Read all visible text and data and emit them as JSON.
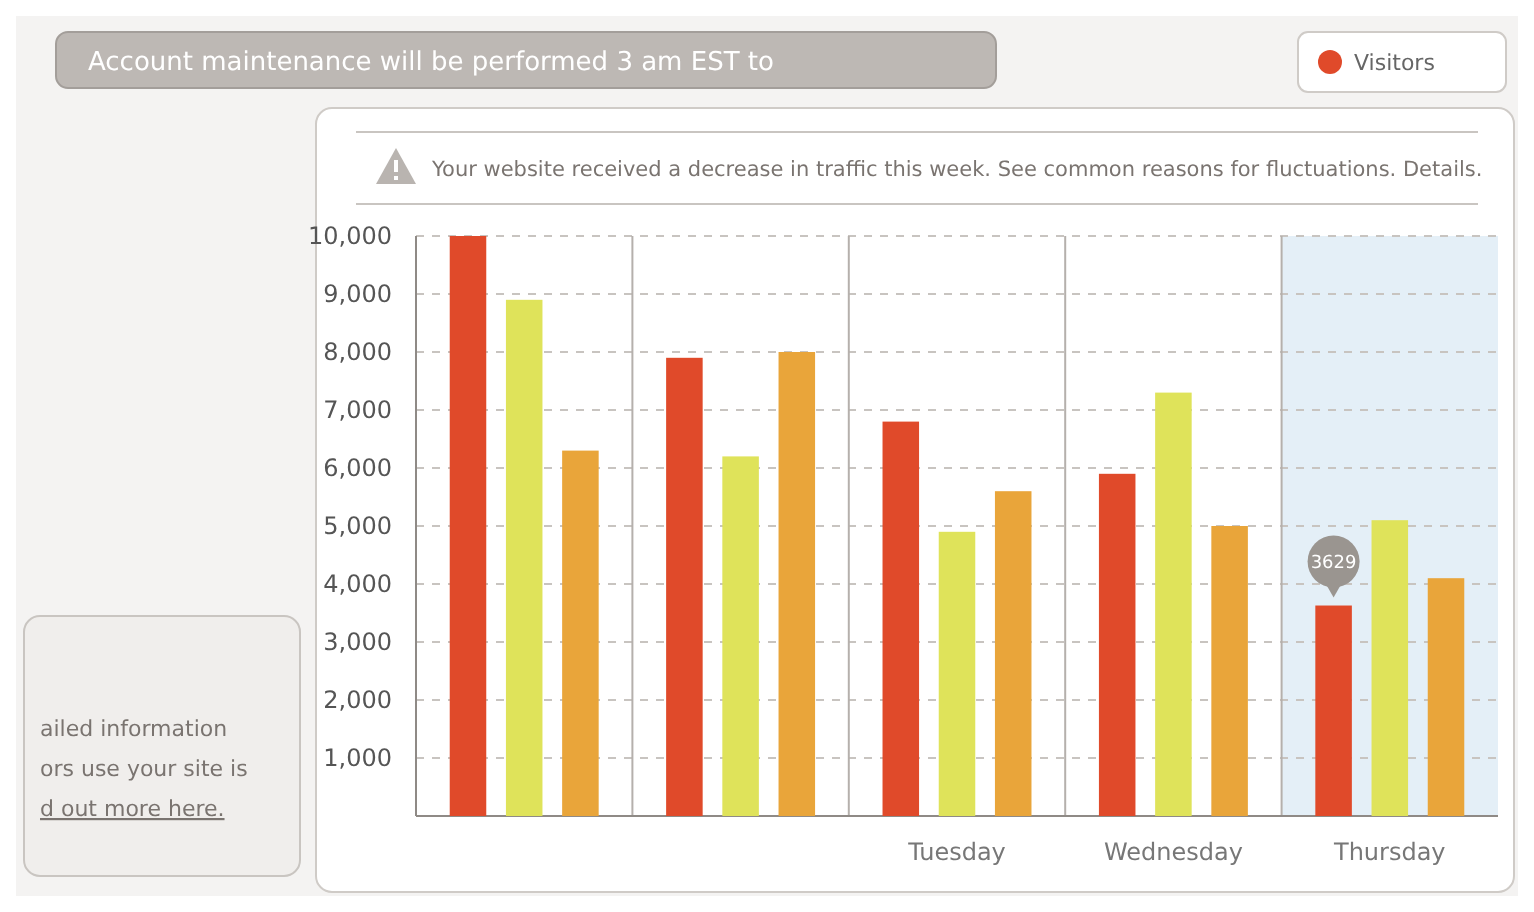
{
  "chart_data": {
    "type": "bar",
    "categories": [
      null,
      null,
      "Tuesday",
      "Wednesday",
      "Thursday"
    ],
    "series": [
      {
        "name": "Visitors",
        "color": "#e04a2a",
        "values": [
          10000,
          7900,
          6800,
          5900,
          3629
        ],
        "value_labels": [
          null,
          null,
          null,
          null,
          "3629"
        ]
      },
      {
        "color": "#dfe35a",
        "values": [
          8900,
          6200,
          4900,
          7300,
          5100
        ]
      },
      {
        "color": "#e9a53a",
        "values": [
          6300,
          8000,
          5600,
          5000,
          4100
        ]
      }
    ],
    "ylim": [
      0,
      10000
    ],
    "yticks": [
      {
        "value": 0,
        "label": null
      },
      {
        "value": 1000,
        "label": "1,000"
      },
      {
        "value": 2000,
        "label": "2,000"
      },
      {
        "value": 3000,
        "label": "3,000"
      },
      {
        "value": 4000,
        "label": "4,000"
      },
      {
        "value": 5000,
        "label": "5,000"
      },
      {
        "value": 6000,
        "label": "6,000"
      },
      {
        "value": 7000,
        "label": "7,000"
      },
      {
        "value": 8000,
        "label": "8,000"
      },
      {
        "value": 9000,
        "label": "9,000"
      },
      {
        "value": 10000,
        "label": "10,000"
      }
    ],
    "grid": true,
    "legend": "top right",
    "bands": [
      {
        "axis": "x",
        "from": "Thursday",
        "to": "Thursday",
        "color": "#e4eff7"
      }
    ],
    "annotations": [
      "Account maintenance will be performed 3 am EST to",
      "Your website received a decrease in traffic this week. See common reasons for fluctuations. Details.",
      "ailed information",
      "ors use your site is",
      "d out more here."
    ]
  }
}
